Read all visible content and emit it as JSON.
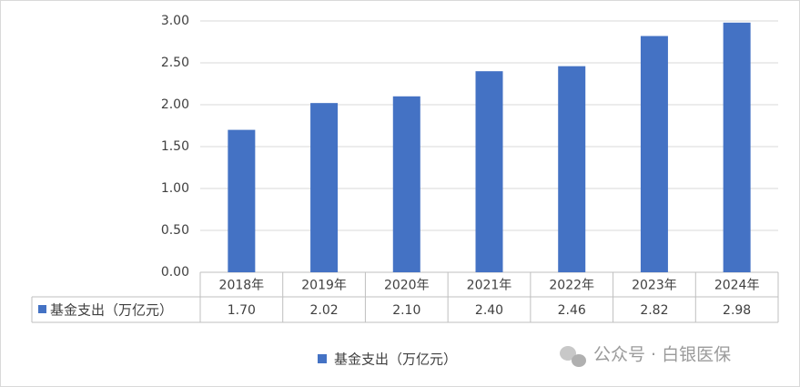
{
  "chart_data": {
    "type": "bar",
    "categories": [
      "2018年",
      "2019年",
      "2020年",
      "2021年",
      "2022年",
      "2023年",
      "2024年"
    ],
    "series": [
      {
        "name": "基金支出（万亿元）",
        "color": "#4472c4",
        "values": [
          1.7,
          2.02,
          2.1,
          2.4,
          2.46,
          2.82,
          2.98
        ],
        "value_labels": [
          "1.70",
          "2.02",
          "2.10",
          "2.40",
          "2.46",
          "2.82",
          "2.98"
        ]
      }
    ],
    "ylim": [
      0,
      3
    ],
    "yticks": [
      {
        "value": 0,
        "label": "0.00"
      },
      {
        "value": 0.5,
        "label": "0.50"
      },
      {
        "value": 1,
        "label": "1.00"
      },
      {
        "value": 1.5,
        "label": "1.50"
      },
      {
        "value": 2,
        "label": "2.00"
      },
      {
        "value": 2.5,
        "label": "2.50"
      },
      {
        "value": 3,
        "label": "3.00"
      }
    ],
    "grid": true,
    "legend": "bottom",
    "data_table": true
  },
  "watermark": "公众号 · 白银医保"
}
